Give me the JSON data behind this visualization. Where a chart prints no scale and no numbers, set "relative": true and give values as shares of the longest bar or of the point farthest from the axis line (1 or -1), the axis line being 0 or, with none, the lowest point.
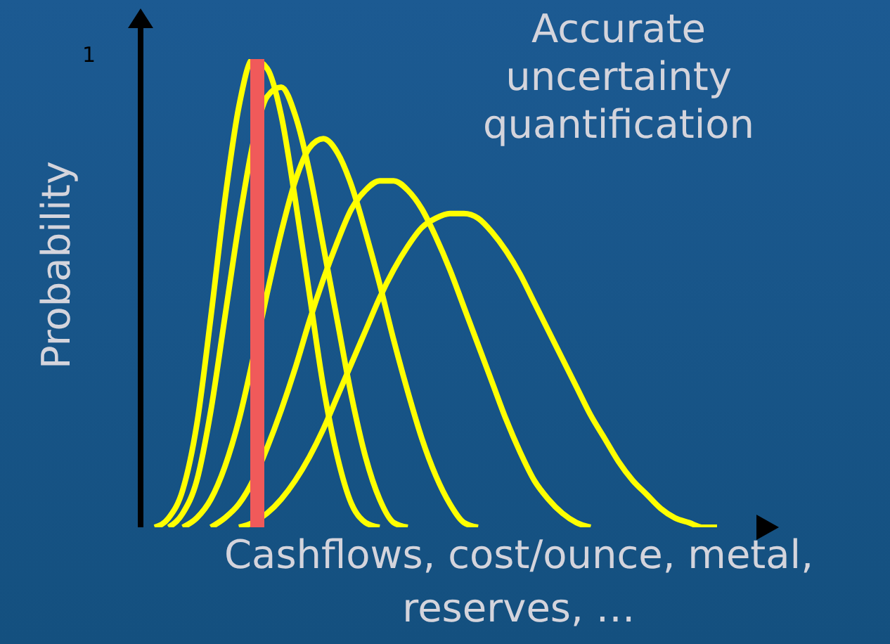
{
  "chart_data": {
    "type": "line",
    "title": "Accurate uncertainty quantification",
    "xlabel": "Cashflows, cost/ounce, metal, reserves, …",
    "ylabel": "Probability",
    "relative": true,
    "marker": "none",
    "line_style": "solid",
    "annotations": [
      "1"
    ],
    "categories": [
      null,
      null,
      null,
      null,
      null,
      null,
      null,
      null,
      null,
      null,
      null,
      null,
      null,
      null,
      null,
      null,
      null,
      null,
      null,
      null,
      null,
      null,
      null,
      null,
      null,
      null,
      null,
      null,
      null,
      null,
      null,
      null,
      null,
      null,
      null,
      null,
      null,
      null,
      null,
      null,
      null,
      null
    ],
    "series": [
      {
        "color": "#ffff00",
        "values": [
          0,
          0.02,
          0.08,
          0.22,
          0.45,
          0.7,
          0.9,
          1,
          0.98,
          0.88,
          0.7,
          0.5,
          0.3,
          0.15,
          0.05,
          0.01,
          0,
          null,
          null,
          null,
          null,
          null,
          null,
          null,
          null,
          null,
          null,
          null,
          null,
          null,
          null,
          null,
          null,
          null,
          null,
          null,
          null,
          null,
          null,
          null,
          null,
          null
        ]
      },
      {
        "color": "#ffff00",
        "values": [
          null,
          0,
          0.03,
          0.1,
          0.25,
          0.45,
          0.65,
          0.82,
          0.92,
          0.94,
          0.88,
          0.76,
          0.6,
          0.44,
          0.28,
          0.15,
          0.06,
          0.01,
          0,
          null,
          null,
          null,
          null,
          null,
          null,
          null,
          null,
          null,
          null,
          null,
          null,
          null,
          null,
          null,
          null,
          null,
          null,
          null,
          null,
          null,
          null,
          null
        ]
      },
      {
        "color": "#ffff00",
        "values": [
          null,
          null,
          0,
          0.02,
          0.06,
          0.13,
          0.23,
          0.36,
          0.5,
          0.63,
          0.74,
          0.81,
          0.83,
          0.8,
          0.73,
          0.63,
          0.52,
          0.4,
          0.29,
          0.19,
          0.11,
          0.05,
          0.01,
          0,
          null,
          null,
          null,
          null,
          null,
          null,
          null,
          null,
          null,
          null,
          null,
          null,
          null,
          null,
          null,
          null,
          null,
          null
        ]
      },
      {
        "color": "#ffff00",
        "values": [
          null,
          null,
          null,
          null,
          0,
          0.02,
          0.05,
          0.1,
          0.17,
          0.25,
          0.34,
          0.44,
          0.53,
          0.61,
          0.68,
          0.72,
          0.74,
          0.74,
          0.72,
          0.68,
          0.62,
          0.55,
          0.47,
          0.39,
          0.31,
          0.23,
          0.16,
          0.1,
          0.06,
          0.03,
          0.01,
          0,
          null,
          null,
          null,
          null,
          null,
          null,
          null,
          null,
          null,
          null
        ]
      },
      {
        "color": "#ffff00",
        "values": [
          null,
          null,
          null,
          null,
          null,
          null,
          0,
          0.01,
          0.03,
          0.06,
          0.1,
          0.15,
          0.21,
          0.28,
          0.35,
          0.42,
          0.49,
          0.55,
          0.6,
          0.64,
          0.66,
          0.67,
          0.67,
          0.66,
          0.63,
          0.59,
          0.54,
          0.48,
          0.42,
          0.36,
          0.3,
          0.24,
          0.19,
          0.14,
          0.1,
          0.07,
          0.04,
          0.02,
          0.01,
          0,
          0,
          null
        ]
      }
    ]
  }
}
